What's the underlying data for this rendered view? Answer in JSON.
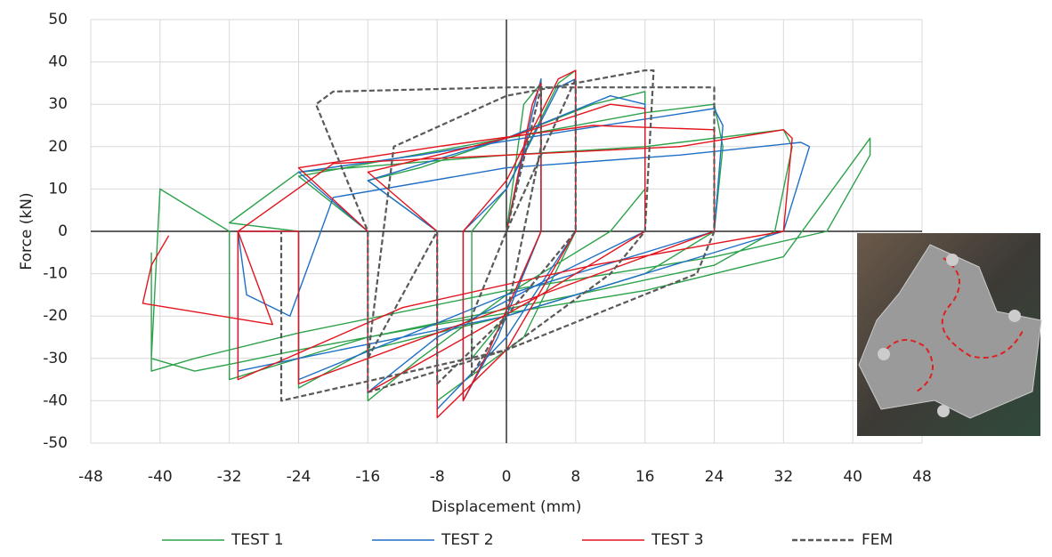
{
  "chart_data": {
    "type": "line",
    "x_label": "Displacement (mm)",
    "y_label": "Force (kN)",
    "xlim": [
      -48,
      48
    ],
    "xticks": [
      -48,
      -40,
      -32,
      -24,
      -16,
      -8,
      0,
      8,
      16,
      24,
      32,
      40,
      48
    ],
    "ylim": [
      -50,
      50
    ],
    "yticks": [
      -50,
      -40,
      -30,
      -20,
      -10,
      0,
      10,
      20,
      30,
      40,
      50
    ],
    "grid": true,
    "legend": "bottom",
    "series": [
      {
        "name": "TEST 1",
        "color": "#2ca24a",
        "dashed": false,
        "x": [
          0,
          2,
          4,
          4,
          0,
          -4,
          -4,
          0,
          6,
          8,
          8,
          2,
          -8,
          -8,
          -16,
          -10,
          0,
          10,
          16,
          16,
          12,
          0,
          -10,
          -16,
          -16,
          -24,
          -16,
          0,
          16,
          24,
          25,
          24,
          16,
          0,
          -16,
          -24,
          -24,
          -32,
          -24,
          0,
          16,
          32,
          33,
          31,
          24,
          8,
          -16,
          -32,
          -32,
          -40,
          -41,
          -36,
          -31,
          -24,
          -8,
          16,
          32,
          42,
          42,
          37,
          24,
          0,
          -24,
          -36,
          -41,
          -41
        ],
        "values": [
          0,
          30,
          35,
          0,
          -20,
          -30,
          0,
          10,
          35,
          38,
          0,
          -25,
          -40,
          0,
          12,
          15,
          22,
          30,
          33,
          10,
          0,
          -15,
          -30,
          -40,
          0,
          13,
          16,
          22,
          28,
          30,
          20,
          0,
          -10,
          -20,
          -28,
          -37,
          0,
          2,
          14,
          18,
          20,
          24,
          20,
          0,
          -8,
          -15,
          -25,
          -35,
          0,
          10,
          -30,
          -33,
          -31,
          -28,
          -22,
          -14,
          -6,
          22,
          18,
          0,
          -6,
          -14,
          -24,
          -30,
          -33,
          -5
        ]
      },
      {
        "name": "TEST 2",
        "color": "#1f6fc6",
        "dashed": false,
        "x": [
          0,
          3,
          4,
          4,
          -1,
          -5,
          -5,
          0,
          6,
          8,
          8,
          0,
          -8,
          -8,
          -16,
          0,
          12,
          16,
          16,
          6,
          -8,
          -16,
          -16,
          -24,
          -10,
          8,
          24,
          25,
          24,
          0,
          -24,
          -24,
          -31,
          -30,
          -25,
          -20,
          0,
          20,
          34,
          35,
          32,
          16,
          0,
          -24,
          -31,
          -31
        ],
        "values": [
          0,
          28,
          36,
          0,
          -25,
          -40,
          0,
          10,
          34,
          36,
          0,
          -25,
          -42,
          0,
          12,
          22,
          32,
          30,
          0,
          -10,
          -25,
          -38,
          0,
          14,
          18,
          24,
          29,
          25,
          0,
          -15,
          -35,
          0,
          0,
          -15,
          -20,
          8,
          15,
          18,
          21,
          20,
          0,
          -10,
          -20,
          -30,
          -33,
          0
        ]
      },
      {
        "name": "TEST 3",
        "color": "#e3141e",
        "dashed": false,
        "x": [
          0,
          3,
          4,
          4,
          -2,
          -5,
          -5,
          0,
          6,
          8,
          8,
          0,
          -8,
          -8,
          -16,
          0,
          12,
          16,
          16,
          4,
          -16,
          -16,
          -24,
          -8,
          10,
          24,
          24,
          8,
          -24,
          -24,
          -31,
          -20,
          0,
          20,
          32,
          33,
          32,
          10,
          -12,
          -31,
          -31,
          -27,
          -42,
          -41,
          -39
        ],
        "values": [
          0,
          30,
          35,
          0,
          -28,
          -40,
          0,
          12,
          36,
          38,
          0,
          -28,
          -44,
          0,
          14,
          22,
          30,
          29,
          0,
          -15,
          -38,
          0,
          15,
          20,
          25,
          24,
          0,
          -12,
          -36,
          0,
          0,
          16,
          18,
          20,
          24,
          22,
          0,
          -8,
          -18,
          -35,
          0,
          -22,
          -17,
          -8,
          -1
        ]
      },
      {
        "name": "FEM",
        "color": "#595959",
        "dashed": true,
        "x": [
          0,
          4,
          4,
          0,
          -4,
          -4,
          0,
          8,
          8,
          0,
          -8,
          -8,
          -16,
          -13,
          0,
          16,
          17,
          16,
          12,
          0,
          -16,
          -16,
          -22,
          -20,
          0,
          24,
          24,
          22,
          0,
          -26,
          -26
        ],
        "values": [
          0,
          34,
          20,
          -20,
          -34,
          -20,
          0,
          36,
          0,
          -20,
          -36,
          0,
          -30,
          20,
          32,
          38,
          38,
          0,
          -10,
          -28,
          -38,
          0,
          30,
          33,
          34,
          34,
          0,
          -10,
          -28,
          -40,
          0
        ]
      }
    ]
  }
}
